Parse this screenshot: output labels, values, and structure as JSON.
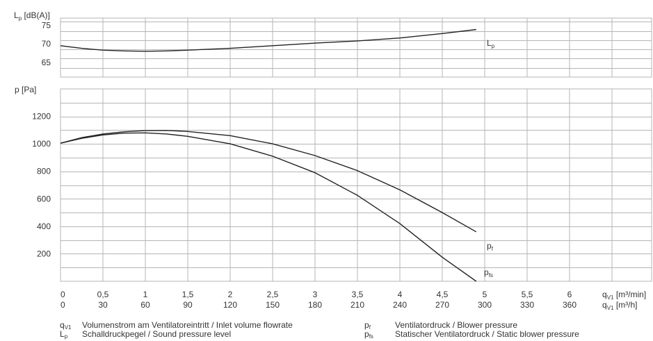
{
  "chart_data": [
    {
      "type": "line",
      "title": "",
      "ylabel_main": "L",
      "ylabel_sub": "p",
      "ylabel_rest": " [dB(A)]",
      "xlim": [
        0,
        7.5
      ],
      "ylim": [
        61,
        77
      ],
      "yticks": [
        65,
        70,
        75
      ],
      "series": [
        {
          "name_main": "L",
          "name_sub": "p",
          "x": [
            0,
            0.25,
            0.5,
            0.75,
            1.0,
            1.25,
            1.5,
            2.0,
            2.5,
            3.0,
            3.5,
            4.0,
            4.5,
            4.9
          ],
          "y": [
            69.5,
            68.8,
            68.3,
            68.1,
            68.0,
            68.1,
            68.3,
            68.8,
            69.5,
            70.2,
            70.8,
            71.6,
            72.8,
            73.9
          ]
        }
      ]
    },
    {
      "type": "line",
      "title": "",
      "ylabel": "p [Pa]",
      "xlim": [
        0,
        7.5
      ],
      "ylim": [
        0,
        1400
      ],
      "yticks": [
        200,
        400,
        600,
        800,
        1000,
        1200
      ],
      "series": [
        {
          "name_main": "p",
          "name_sub": "f",
          "x": [
            0,
            0.25,
            0.5,
            0.75,
            1.0,
            1.25,
            1.5,
            2.0,
            2.5,
            3.0,
            3.5,
            4.0,
            4.5,
            4.9
          ],
          "y": [
            1005,
            1045,
            1072,
            1088,
            1096,
            1098,
            1090,
            1060,
            1000,
            915,
            805,
            665,
            500,
            360
          ]
        },
        {
          "name_main": "p",
          "name_sub": "fs",
          "x": [
            0,
            0.25,
            0.5,
            0.75,
            1.0,
            1.25,
            1.5,
            2.0,
            2.5,
            3.0,
            3.5,
            4.0,
            4.5,
            4.9
          ],
          "y": [
            1005,
            1040,
            1065,
            1078,
            1080,
            1072,
            1055,
            1000,
            910,
            790,
            625,
            420,
            175,
            0
          ]
        }
      ]
    }
  ],
  "x_axis": {
    "ticks_min": [
      "0",
      "0,5",
      "1",
      "1,5",
      "2",
      "2,5",
      "3",
      "3,5",
      "4",
      "4,5",
      "5",
      "5,5",
      "6"
    ],
    "ticks_h": [
      "0",
      "30",
      "60",
      "90",
      "120",
      "150",
      "180",
      "210",
      "240",
      "270",
      "300",
      "330",
      "360"
    ],
    "label_min_pre": "q",
    "label_min_sub": "V1",
    "label_min_post": " [m³/min]",
    "label_h_pre": "q",
    "label_h_sub": "V1",
    "label_h_post": " [m³/h]"
  },
  "legend": {
    "qv1_sym": "q",
    "qv1_sub": "V1",
    "qv1_text": "Volumenstrom am Ventilatoreintritt / Inlet volume flowrate",
    "lp_sym": "L",
    "lp_sub": "p",
    "lp_text": "Schalldruckpegel / Sound pressure level",
    "pf_sym": "p",
    "pf_sub": "f",
    "pf_text": "Ventilatordruck / Blower pressure",
    "pfs_sym": "p",
    "pfs_sub": "fs",
    "pfs_text": "Statischer Ventilatordruck / Static blower pressure"
  },
  "colors": {
    "grid": "#b5b5b5",
    "curve": "#222222",
    "axis": "#888888"
  }
}
